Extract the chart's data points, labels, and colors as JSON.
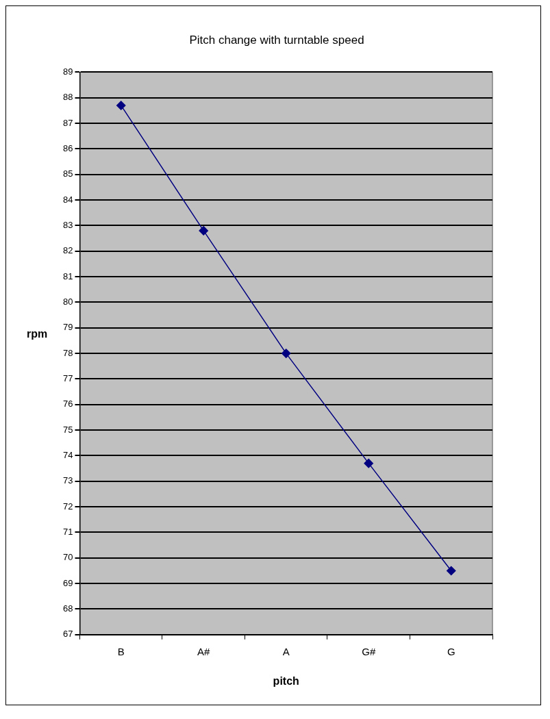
{
  "chart_data": {
    "type": "line",
    "title": "Pitch change with turntable speed",
    "xlabel": "pitch",
    "ylabel": "rpm",
    "categories": [
      "B",
      "A#",
      "A",
      "G#",
      "G"
    ],
    "series": [
      {
        "color": "#000080",
        "values": [
          87.7,
          82.8,
          78.0,
          73.7,
          69.5
        ]
      }
    ],
    "ylim": [
      67,
      89
    ],
    "yticks": [
      67,
      68,
      69,
      70,
      71,
      72,
      73,
      74,
      75,
      76,
      77,
      78,
      79,
      80,
      81,
      82,
      83,
      84,
      85,
      86,
      87,
      88,
      89
    ],
    "grid": "y",
    "legend": false,
    "marker": "diamond",
    "line_style": "solid"
  }
}
